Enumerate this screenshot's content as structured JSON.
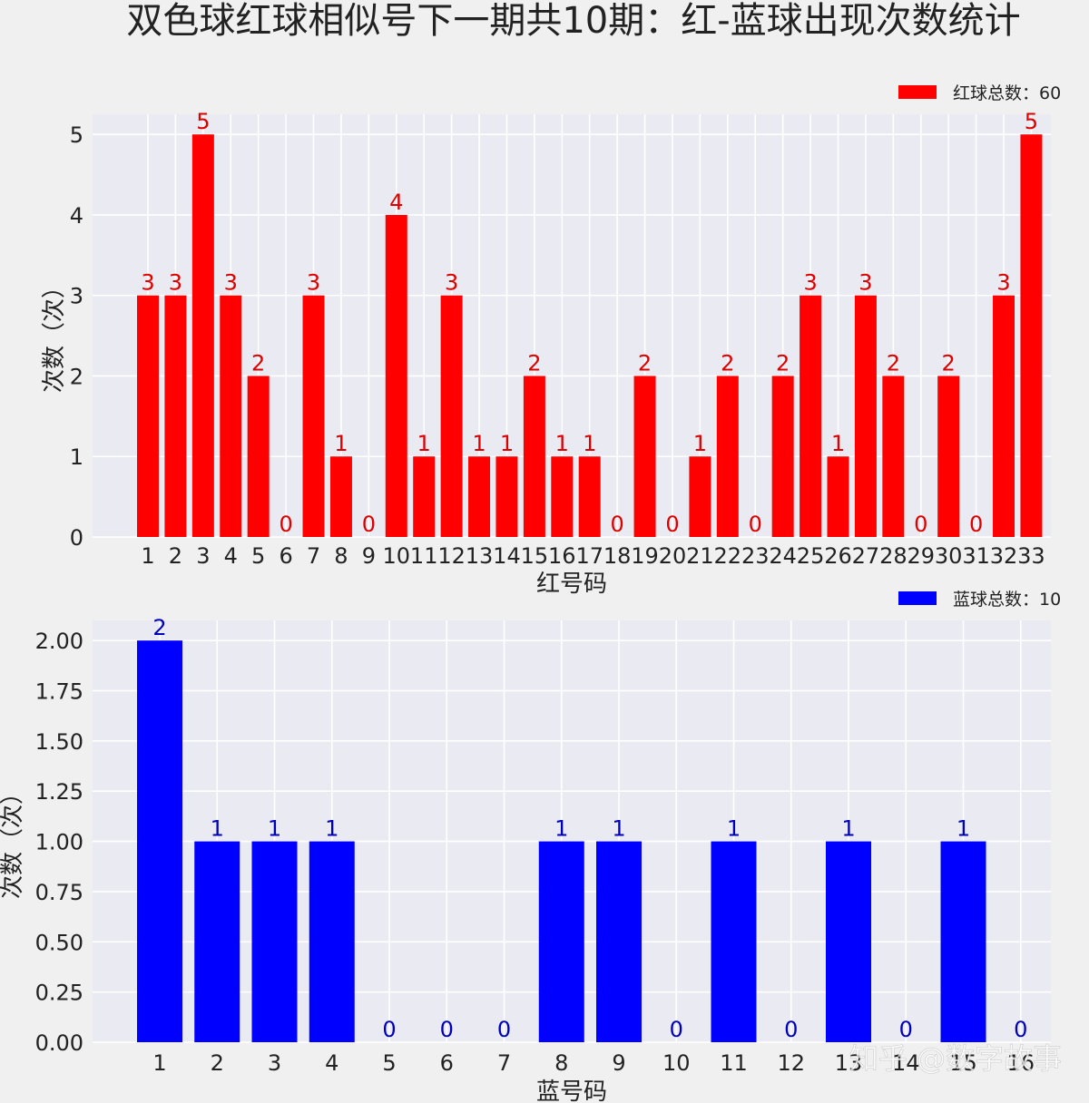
{
  "title": "双色球红球相似号下一期共10期：红-蓝球出现次数统计",
  "watermark": "知乎 @数字故事",
  "chart_data": [
    {
      "type": "bar",
      "color": "#ff0000",
      "label_color": "#dd0000",
      "xlabel": "红号码",
      "ylabel": "次数（次）",
      "legend": "红球总数：60",
      "legend_position": "top-right",
      "grid": true,
      "ylim": [
        0,
        5.25
      ],
      "yticks": [
        0,
        1,
        2,
        3,
        4,
        5
      ],
      "ytick_labels": [
        "0",
        "1",
        "2",
        "3",
        "4",
        "5"
      ],
      "categories": [
        "1",
        "2",
        "3",
        "4",
        "5",
        "6",
        "7",
        "8",
        "9",
        "10",
        "11",
        "12",
        "13",
        "14",
        "15",
        "16",
        "17",
        "18",
        "19",
        "20",
        "21",
        "22",
        "23",
        "24",
        "25",
        "26",
        "27",
        "28",
        "29",
        "30",
        "31",
        "32",
        "33"
      ],
      "values": [
        3,
        3,
        5,
        3,
        2,
        0,
        3,
        1,
        0,
        4,
        1,
        3,
        1,
        1,
        2,
        1,
        1,
        0,
        2,
        0,
        1,
        2,
        0,
        2,
        3,
        1,
        3,
        2,
        0,
        2,
        0,
        3,
        5
      ]
    },
    {
      "type": "bar",
      "color": "#0000ff",
      "label_color": "#0000bb",
      "xlabel": "蓝号码",
      "ylabel": "次数（次）",
      "legend": "蓝球总数：10",
      "legend_position": "top-right",
      "grid": true,
      "ylim": [
        0,
        2.1
      ],
      "yticks": [
        0,
        0.25,
        0.5,
        0.75,
        1.0,
        1.25,
        1.5,
        1.75,
        2.0
      ],
      "ytick_labels": [
        "0.00",
        "0.25",
        "0.50",
        "0.75",
        "1.00",
        "1.25",
        "1.50",
        "1.75",
        "2.00"
      ],
      "categories": [
        "1",
        "2",
        "3",
        "4",
        "5",
        "6",
        "7",
        "8",
        "9",
        "10",
        "11",
        "12",
        "13",
        "14",
        "15",
        "16"
      ],
      "values": [
        2,
        1,
        1,
        1,
        0,
        0,
        0,
        1,
        1,
        0,
        1,
        0,
        1,
        0,
        1,
        0
      ]
    }
  ]
}
